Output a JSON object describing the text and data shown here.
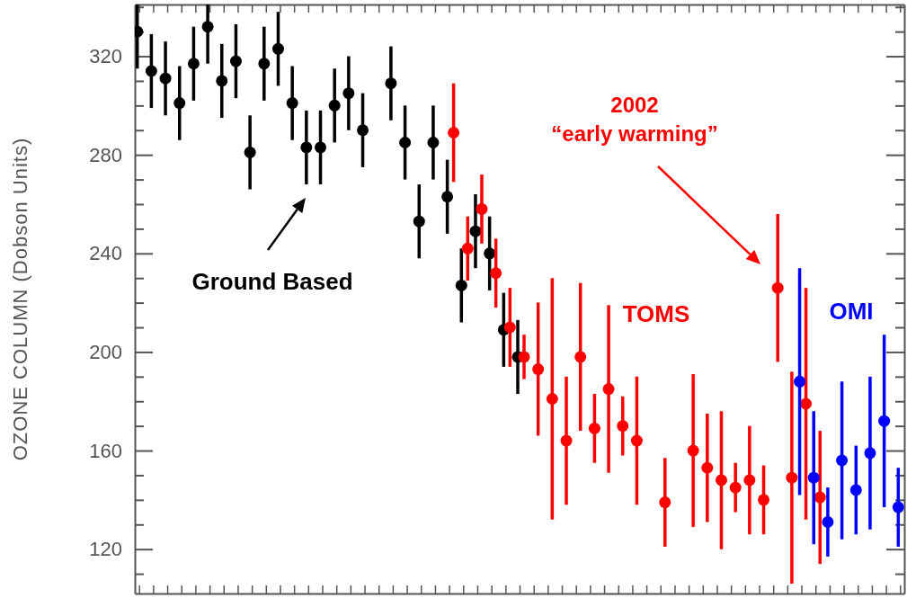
{
  "chart_data": {
    "type": "scatter",
    "ylabel": "OZONE COLUMN (Dobson Units)",
    "annotations": [
      "2002\n“early warming”"
    ],
    "categories": [
      null,
      null,
      null,
      null,
      null,
      null,
      null,
      null,
      null,
      null,
      null,
      null,
      null,
      null,
      null,
      null,
      null,
      null,
      null,
      null,
      null,
      null,
      null,
      null,
      null,
      null,
      null,
      null,
      null,
      null,
      null,
      null,
      null,
      null,
      null,
      null,
      null,
      null,
      null,
      null,
      null,
      null,
      null,
      null,
      null,
      null,
      null,
      null,
      null,
      null,
      null,
      null,
      null,
      null,
      null
    ],
    "ylim": [
      102,
      341
    ],
    "yticks": [
      {
        "value": 110,
        "label": null
      },
      120,
      {
        "value": 130,
        "label": null
      },
      {
        "value": 140,
        "label": null
      },
      {
        "value": 150,
        "label": null
      },
      160,
      {
        "value": 170,
        "label": null
      },
      {
        "value": 180,
        "label": null
      },
      {
        "value": 190,
        "label": null
      },
      200,
      {
        "value": 210,
        "label": null
      },
      {
        "value": 220,
        "label": null
      },
      {
        "value": 230,
        "label": null
      },
      240,
      {
        "value": 250,
        "label": null
      },
      {
        "value": 260,
        "label": null
      },
      {
        "value": 270,
        "label": null
      },
      280,
      {
        "value": 290,
        "label": null
      },
      {
        "value": 300,
        "label": null
      },
      {
        "value": 310,
        "label": null
      },
      320,
      {
        "value": 330,
        "label": null
      },
      {
        "value": 340,
        "label": null
      }
    ],
    "marker": "circle",
    "series": [
      {
        "name": "Ground Based",
        "color": "#000000",
        "values": [
          330,
          314,
          311,
          301,
          317,
          332,
          310,
          318,
          281,
          317,
          323,
          301,
          283,
          283,
          300,
          305,
          290,
          null,
          309,
          285,
          253,
          285,
          263,
          227,
          249,
          240,
          209,
          198,
          null,
          null,
          null,
          null,
          null,
          null,
          null,
          null,
          null,
          null,
          null,
          null,
          null,
          null,
          null,
          null,
          null,
          null,
          null,
          null,
          null,
          null,
          null,
          null,
          null,
          null,
          null
        ],
        "errors": [
          [
            315,
            341
          ],
          15,
          15,
          15,
          15,
          [
            317,
            341
          ],
          15,
          15,
          15,
          15,
          15,
          15,
          15,
          15,
          15,
          15,
          15,
          null,
          15,
          15,
          15,
          15,
          15,
          15,
          15,
          15,
          15,
          15,
          null,
          null,
          null,
          null,
          null,
          null,
          null,
          null,
          null,
          null,
          null,
          null,
          null,
          null,
          null,
          null,
          null,
          null,
          null,
          null,
          null,
          null,
          null,
          null,
          null,
          null,
          null
        ]
      },
      {
        "name": "TOMS",
        "color": "#ff0000",
        "values": [
          null,
          null,
          null,
          null,
          null,
          null,
          null,
          null,
          null,
          null,
          null,
          null,
          null,
          null,
          null,
          null,
          null,
          null,
          null,
          null,
          null,
          null,
          289,
          242,
          258,
          232,
          210,
          198,
          193,
          181,
          164,
          198,
          169,
          185,
          170,
          164,
          null,
          139,
          null,
          160,
          153,
          148,
          145,
          148,
          140,
          226,
          149,
          179,
          141,
          null,
          null,
          null,
          null,
          null,
          null
        ],
        "errors": [
          null,
          null,
          null,
          null,
          null,
          null,
          null,
          null,
          null,
          null,
          null,
          null,
          null,
          null,
          null,
          null,
          null,
          null,
          null,
          null,
          null,
          null,
          20,
          13,
          14,
          14,
          16,
          9,
          27,
          49,
          26,
          30,
          14,
          34,
          12,
          26,
          null,
          18,
          null,
          31,
          22,
          28,
          10,
          22,
          14,
          30,
          43,
          47,
          27,
          null,
          null,
          null,
          null,
          null,
          null
        ]
      },
      {
        "name": "OMI",
        "color": "#0000ff",
        "values": [
          null,
          null,
          null,
          null,
          null,
          null,
          null,
          null,
          null,
          null,
          null,
          null,
          null,
          null,
          null,
          null,
          null,
          null,
          null,
          null,
          null,
          null,
          null,
          null,
          null,
          null,
          null,
          null,
          null,
          null,
          null,
          null,
          null,
          null,
          null,
          null,
          null,
          null,
          null,
          null,
          null,
          null,
          null,
          null,
          null,
          null,
          null,
          188,
          149,
          131,
          156,
          144,
          159,
          172,
          137
        ],
        "errors": [
          null,
          null,
          null,
          null,
          null,
          null,
          null,
          null,
          null,
          null,
          null,
          null,
          null,
          null,
          null,
          null,
          null,
          null,
          null,
          null,
          null,
          null,
          null,
          null,
          null,
          null,
          null,
          null,
          null,
          null,
          null,
          null,
          null,
          null,
          null,
          null,
          null,
          null,
          null,
          null,
          null,
          null,
          null,
          null,
          null,
          null,
          null,
          46,
          27,
          14,
          32,
          18,
          31,
          35,
          16
        ]
      }
    ]
  }
}
